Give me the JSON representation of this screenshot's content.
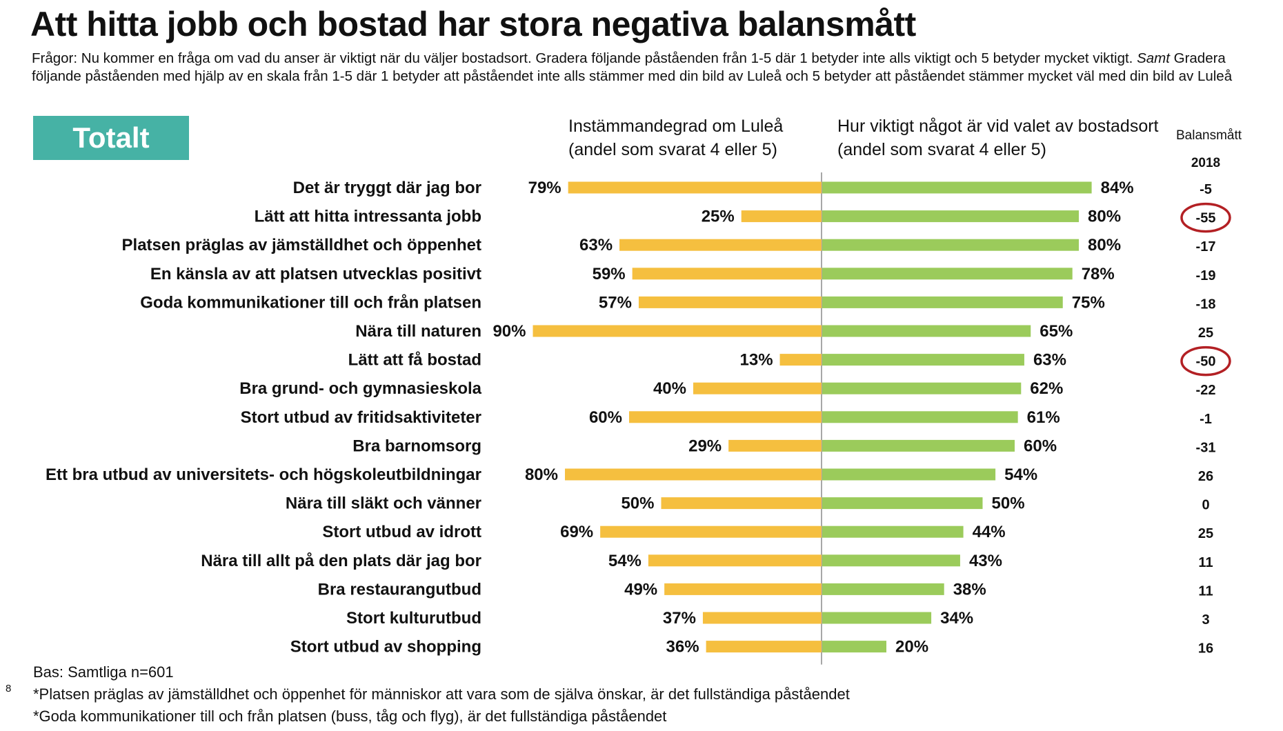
{
  "title": "Att hitta jobb och bostad har stora negativa balansmått",
  "question": {
    "main": "Frågor: Nu kommer en fråga om vad du anser är viktigt när du väljer bostadsort. Gradera följande påståenden från 1-5 där 1 betyder inte alls viktigt och 5 betyder mycket viktigt. ",
    "italic": "Samt",
    "rest": " Gradera följande påståenden med hjälp av en skala från 1-5 där 1 betyder att påståendet inte alls stämmer med din bild av Luleå och 5 betyder att påståendet stämmer mycket väl med din bild av Luleå"
  },
  "badge": "Totalt",
  "colors": {
    "left": "#F5BF3F",
    "right": "#9BCB5B",
    "badge": "#46B2A5",
    "circle": "#B32024",
    "axis": "#8A8A8A"
  },
  "chart_data": {
    "type": "bar",
    "left_header": {
      "line1": "Instämmandegrad om Luleå",
      "line2": "(andel som svarat 4 eller 5)"
    },
    "right_header": {
      "line1": "Hur viktigt något är vid valet av bostadsort",
      "line2": "(andel som svarat 4 eller 5)"
    },
    "balance_header": {
      "label": "Balansmått",
      "year": "2018"
    },
    "categories": [
      "Det är tryggt där jag bor",
      "Lätt att hitta intressanta jobb",
      "Platsen präglas av jämställdhet och öppenhet",
      "En känsla av att platsen utvecklas positivt",
      "Goda kommunikationer till och från platsen",
      "Nära till naturen",
      "Lätt att få bostad",
      "Bra grund- och gymnasieskola",
      "Stort utbud av fritidsaktiviteter",
      "Bra barnomsorg",
      "Ett bra utbud av universitets- och högskoleutbildningar",
      "Nära till släkt och vänner",
      "Stort utbud av idrott",
      "Nära till allt på den plats där jag bor",
      "Bra restaurangutbud",
      "Stort kulturutbud",
      "Stort utbud av shopping"
    ],
    "left_values": [
      79,
      25,
      63,
      59,
      57,
      90,
      13,
      40,
      60,
      29,
      80,
      50,
      69,
      54,
      49,
      37,
      36
    ],
    "right_values": [
      84,
      80,
      80,
      78,
      75,
      65,
      63,
      62,
      61,
      60,
      54,
      50,
      44,
      43,
      38,
      34,
      20
    ],
    "balance_values": [
      -5,
      -55,
      -17,
      -19,
      -18,
      25,
      -50,
      -22,
      -1,
      -31,
      26,
      0,
      25,
      11,
      11,
      3,
      16
    ],
    "highlighted_balance_indices": [
      1,
      6
    ],
    "unit": "%"
  },
  "footer": {
    "base": "Bas: Samtliga n=601",
    "note1": "*Platsen präglas av jämställdhet och öppenhet för människor att vara som de själva önskar, är det fullständiga påståendet",
    "note2": "*Goda kommunikationer till och från platsen (buss, tåg och flyg), är det fullständiga påståendet"
  },
  "page_number": "8"
}
